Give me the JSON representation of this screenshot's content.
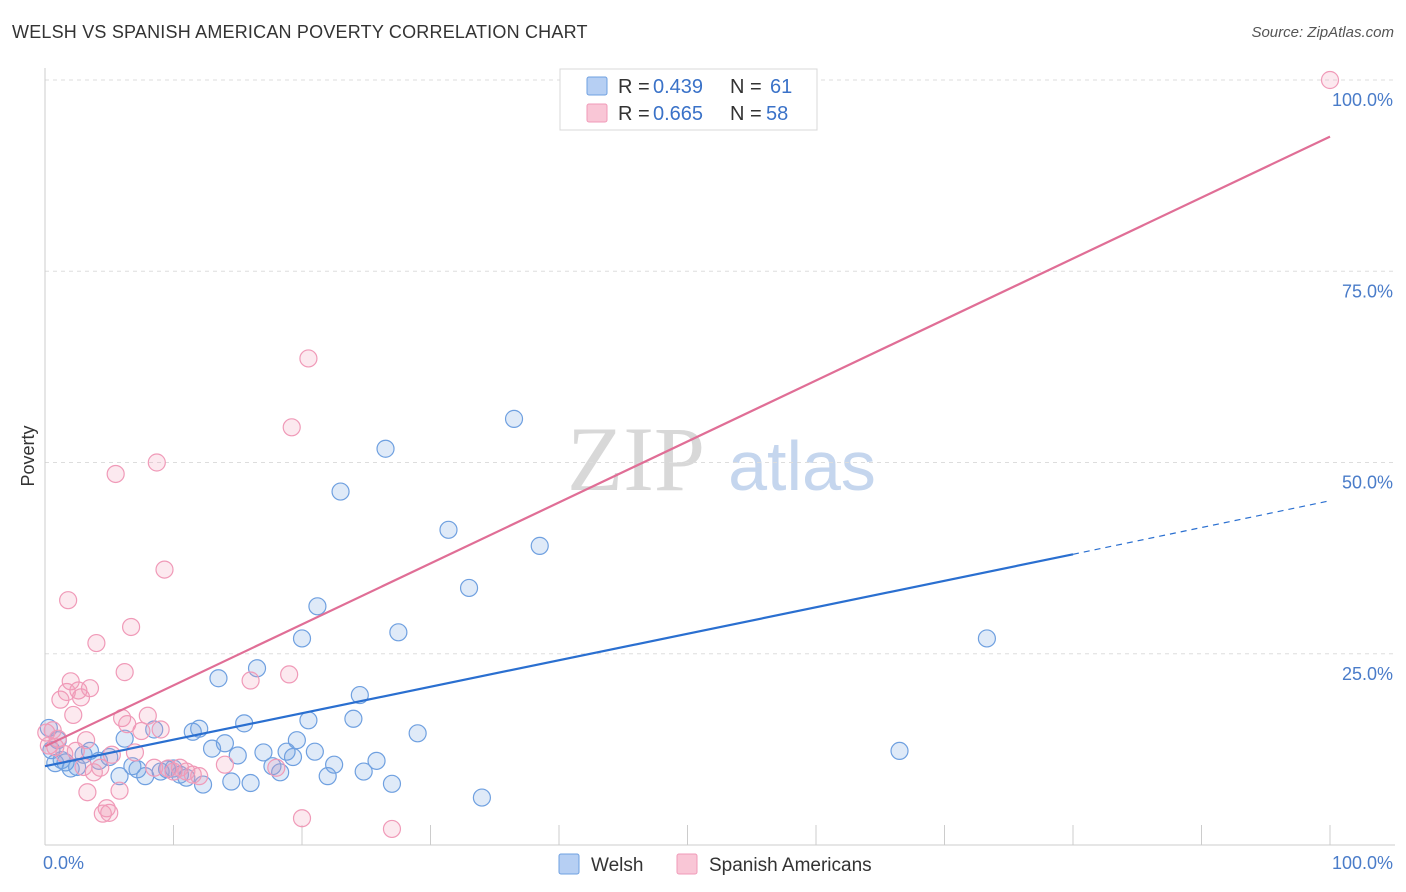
{
  "header": {
    "title": "WELSH VS SPANISH AMERICAN POVERTY CORRELATION CHART",
    "source": "Source: ZipAtlas.com"
  },
  "watermark": {
    "zip": "ZIP",
    "atlas": "atlas"
  },
  "colors": {
    "welsh": "#6fa0e0",
    "welsh_line": "#2a6fd0",
    "spanish": "#f09ab8",
    "spanish_line": "#e06e96",
    "grid": "#dddddd",
    "tick": "#4a7cc9"
  },
  "legend": {
    "welsh": {
      "r_label": "R =",
      "r_value": "0.439",
      "n_label": "N =",
      "n_value": "61"
    },
    "spanish": {
      "r_label": "R =",
      "r_value": "0.665",
      "n_label": "N =",
      "n_value": "58"
    }
  },
  "chart_data": {
    "type": "scatter",
    "title": "WELSH VS SPANISH AMERICAN POVERTY CORRELATION CHART",
    "xlabel": "",
    "ylabel": "Poverty",
    "xlim": [
      0,
      100
    ],
    "ylim": [
      0,
      100
    ],
    "x_tick_labels": [
      "0.0%",
      "100.0%"
    ],
    "y_ticks": [
      25,
      50,
      75,
      100
    ],
    "y_tick_labels": [
      "25.0%",
      "50.0%",
      "75.0%",
      "100.0%"
    ],
    "grid": true,
    "legend_position": "top-center",
    "series": [
      {
        "name": "Welsh",
        "trend": {
          "x0": 0,
          "y0": 10.3,
          "x1": 80,
          "y1": 38.0,
          "dashed_to_x": 100,
          "dashed_to_y": 45.0
        },
        "points": [
          [
            0.3,
            15.3
          ],
          [
            0.5,
            12.4
          ],
          [
            0.8,
            10.7
          ],
          [
            1.0,
            13.7
          ],
          [
            1.3,
            11.1
          ],
          [
            1.6,
            10.8
          ],
          [
            2.0,
            10.0
          ],
          [
            2.5,
            10.2
          ],
          [
            3.0,
            11.8
          ],
          [
            3.5,
            12.3
          ],
          [
            4.2,
            11.0
          ],
          [
            5.0,
            11.5
          ],
          [
            5.8,
            9.0
          ],
          [
            6.2,
            13.9
          ],
          [
            6.8,
            10.3
          ],
          [
            7.2,
            9.9
          ],
          [
            7.8,
            9.0
          ],
          [
            8.5,
            15.1
          ],
          [
            9.0,
            9.6
          ],
          [
            9.5,
            9.9
          ],
          [
            10.0,
            10.0
          ],
          [
            10.5,
            9.2
          ],
          [
            11.0,
            8.8
          ],
          [
            11.5,
            14.8
          ],
          [
            12.0,
            15.2
          ],
          [
            12.3,
            7.9
          ],
          [
            13.0,
            12.6
          ],
          [
            13.5,
            21.8
          ],
          [
            14.0,
            13.3
          ],
          [
            14.5,
            8.3
          ],
          [
            15.0,
            11.7
          ],
          [
            15.5,
            15.9
          ],
          [
            16.0,
            8.1
          ],
          [
            16.5,
            23.1
          ],
          [
            17.0,
            12.1
          ],
          [
            17.7,
            10.3
          ],
          [
            18.3,
            9.5
          ],
          [
            18.8,
            12.2
          ],
          [
            19.3,
            11.5
          ],
          [
            19.6,
            13.7
          ],
          [
            20.0,
            27.0
          ],
          [
            20.5,
            16.3
          ],
          [
            21.0,
            12.2
          ],
          [
            21.2,
            31.2
          ],
          [
            22.0,
            9.0
          ],
          [
            22.5,
            10.5
          ],
          [
            23.0,
            46.2
          ],
          [
            24.0,
            16.5
          ],
          [
            24.5,
            19.6
          ],
          [
            24.8,
            9.6
          ],
          [
            25.8,
            11.0
          ],
          [
            26.5,
            51.8
          ],
          [
            27.0,
            8.0
          ],
          [
            27.5,
            27.8
          ],
          [
            29.0,
            14.6
          ],
          [
            31.4,
            41.2
          ],
          [
            33.0,
            33.6
          ],
          [
            34.0,
            6.2
          ],
          [
            36.5,
            55.7
          ],
          [
            38.5,
            39.1
          ],
          [
            66.5,
            12.3
          ],
          [
            73.3,
            27.0
          ]
        ]
      },
      {
        "name": "Spanish Americans",
        "trend": {
          "x0": 0,
          "y0": 12.9,
          "x1": 100,
          "y1": 92.6
        },
        "points": [
          [
            0.1,
            14.7
          ],
          [
            0.3,
            13.0
          ],
          [
            0.6,
            15.0
          ],
          [
            0.8,
            12.8
          ],
          [
            1.0,
            13.9
          ],
          [
            1.2,
            19.0
          ],
          [
            1.5,
            11.9
          ],
          [
            1.7,
            20.0
          ],
          [
            1.8,
            32.0
          ],
          [
            2.0,
            21.4
          ],
          [
            2.2,
            17.0
          ],
          [
            2.4,
            12.3
          ],
          [
            2.6,
            20.2
          ],
          [
            2.8,
            19.3
          ],
          [
            3.0,
            10.2
          ],
          [
            3.2,
            13.7
          ],
          [
            3.3,
            6.9
          ],
          [
            3.5,
            20.5
          ],
          [
            3.8,
            9.5
          ],
          [
            4.0,
            26.4
          ],
          [
            4.3,
            10.1
          ],
          [
            4.5,
            4.1
          ],
          [
            4.8,
            4.8
          ],
          [
            5.0,
            4.2
          ],
          [
            5.2,
            11.8
          ],
          [
            5.5,
            48.5
          ],
          [
            5.8,
            7.1
          ],
          [
            6.0,
            16.6
          ],
          [
            6.2,
            22.6
          ],
          [
            6.4,
            15.8
          ],
          [
            6.7,
            28.5
          ],
          [
            7.0,
            12.1
          ],
          [
            7.5,
            14.9
          ],
          [
            8.0,
            16.9
          ],
          [
            8.5,
            10.1
          ],
          [
            8.7,
            50.0
          ],
          [
            9.0,
            15.1
          ],
          [
            9.3,
            36.0
          ],
          [
            9.6,
            10.0
          ],
          [
            10.0,
            9.6
          ],
          [
            10.5,
            10.1
          ],
          [
            11.0,
            9.6
          ],
          [
            11.5,
            9.2
          ],
          [
            12.0,
            9.0
          ],
          [
            14.0,
            10.5
          ],
          [
            16.0,
            21.5
          ],
          [
            18.0,
            10.1
          ],
          [
            19.0,
            22.3
          ],
          [
            19.2,
            54.6
          ],
          [
            20.0,
            3.5
          ],
          [
            20.5,
            63.6
          ],
          [
            27.0,
            2.1
          ],
          [
            100.0,
            100.0
          ]
        ]
      }
    ]
  },
  "bottom_legend": {
    "welsh": "Welsh",
    "spanish": "Spanish Americans"
  }
}
